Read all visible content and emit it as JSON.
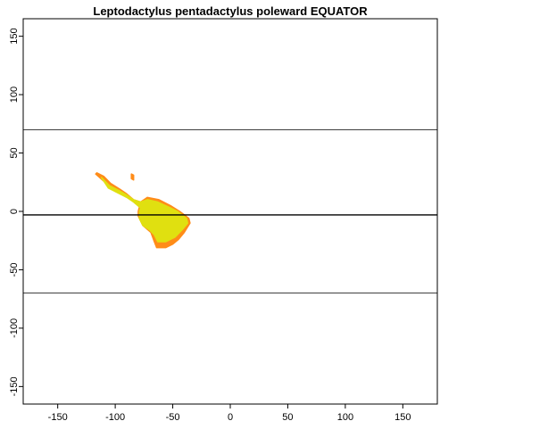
{
  "chart_data": {
    "type": "map",
    "title": "Leptodactylus pentadactylus poleward EQUATOR",
    "xlabel": "",
    "ylabel": "",
    "xlim": [
      -180,
      180
    ],
    "ylim": [
      -165,
      165
    ],
    "x_ticks": [
      -150,
      -100,
      -50,
      0,
      50,
      100,
      150
    ],
    "x_tick_labels": [
      "-150",
      "-100",
      "-50",
      "0",
      "50",
      "100",
      "150"
    ],
    "y_ticks": [
      -150,
      -100,
      -50,
      0,
      50,
      100,
      150
    ],
    "y_tick_labels": [
      "-150",
      "-100",
      "-50",
      "0",
      "50",
      "100",
      "150"
    ],
    "reference_lines_latitude": [
      70,
      -3,
      -70
    ],
    "grid": false,
    "legend": "none",
    "series": [
      {
        "color": "#ff8c19",
        "regions": [
          [
            [
              -116,
              33
            ],
            [
              -110,
              30
            ],
            [
              -104,
              24
            ],
            [
              -96,
              19
            ],
            [
              -90,
              15
            ],
            [
              -84,
              10
            ],
            [
              -78,
              8
            ],
            [
              -72,
              12
            ],
            [
              -62,
              10
            ],
            [
              -52,
              5
            ],
            [
              -44,
              0
            ],
            [
              -36,
              -6
            ],
            [
              -35,
              -10
            ],
            [
              -40,
              -18
            ],
            [
              -45,
              -24
            ],
            [
              -50,
              -28
            ],
            [
              -56,
              -31
            ],
            [
              -64,
              -31
            ],
            [
              -66,
              -26
            ],
            [
              -69,
              -18
            ],
            [
              -76,
              -12
            ],
            [
              -80,
              -4
            ],
            [
              -80,
              0
            ],
            [
              -79,
              4
            ],
            [
              -83,
              8
            ],
            [
              -88,
              12
            ],
            [
              -95,
              16
            ],
            [
              -103,
              20
            ],
            [
              -110,
              26
            ],
            [
              -117,
              32
            ]
          ],
          [
            [
              -86,
              32
            ],
            [
              -84,
              31
            ],
            [
              -84,
              27
            ],
            [
              -86,
              28
            ]
          ]
        ]
      },
      {
        "color": "#e0e010",
        "regions": [
          [
            [
              -112,
              29
            ],
            [
              -105,
              22
            ],
            [
              -97,
              18
            ],
            [
              -90,
              14
            ],
            [
              -84,
              10
            ],
            [
              -78,
              8
            ],
            [
              -72,
              10
            ],
            [
              -63,
              8
            ],
            [
              -52,
              3
            ],
            [
              -46,
              0
            ],
            [
              -38,
              -6
            ],
            [
              -37,
              -10
            ],
            [
              -42,
              -16
            ],
            [
              -48,
              -22
            ],
            [
              -56,
              -26
            ],
            [
              -63,
              -26
            ],
            [
              -66,
              -20
            ],
            [
              -70,
              -16
            ],
            [
              -76,
              -12
            ],
            [
              -79,
              -6
            ],
            [
              -79,
              0
            ],
            [
              -78,
              3
            ],
            [
              -84,
              8
            ],
            [
              -90,
              12
            ],
            [
              -98,
              16
            ],
            [
              -106,
              20
            ]
          ]
        ]
      }
    ]
  }
}
